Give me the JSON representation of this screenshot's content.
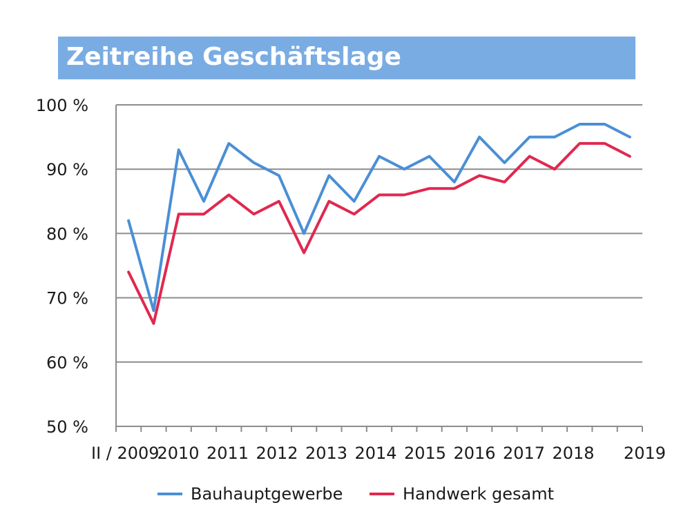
{
  "title": "Zeitreihe Geschäftslage",
  "chart_data": {
    "type": "line",
    "title": "Zeitreihe Geschäftslage",
    "xlabel": "",
    "ylabel": "",
    "ylim": [
      50,
      100
    ],
    "y_ticks": [
      "50 %",
      "60 %",
      "70 %",
      "80 %",
      "90 %",
      "100 %"
    ],
    "x_tick_labels": [
      "II / 2009",
      "2010",
      "2011",
      "2012",
      "2013",
      "2014",
      "2015",
      "2016",
      "2017",
      "2018",
      "2019"
    ],
    "grid": true,
    "legend_position": "bottom",
    "series": [
      {
        "name": "Bauhauptgewerbe",
        "color": "#4a8fd6",
        "values": [
          82,
          68,
          93,
          85,
          94,
          91,
          89,
          80,
          89,
          85,
          92,
          90,
          92,
          88,
          95,
          91,
          95,
          95,
          97,
          97,
          95
        ]
      },
      {
        "name": "Handwerk gesamt",
        "color": "#e0284f",
        "values": [
          74,
          66,
          83,
          83,
          86,
          83,
          85,
          77,
          85,
          83,
          86,
          86,
          87,
          87,
          89,
          88,
          92,
          90,
          94,
          94,
          92
        ]
      }
    ]
  }
}
